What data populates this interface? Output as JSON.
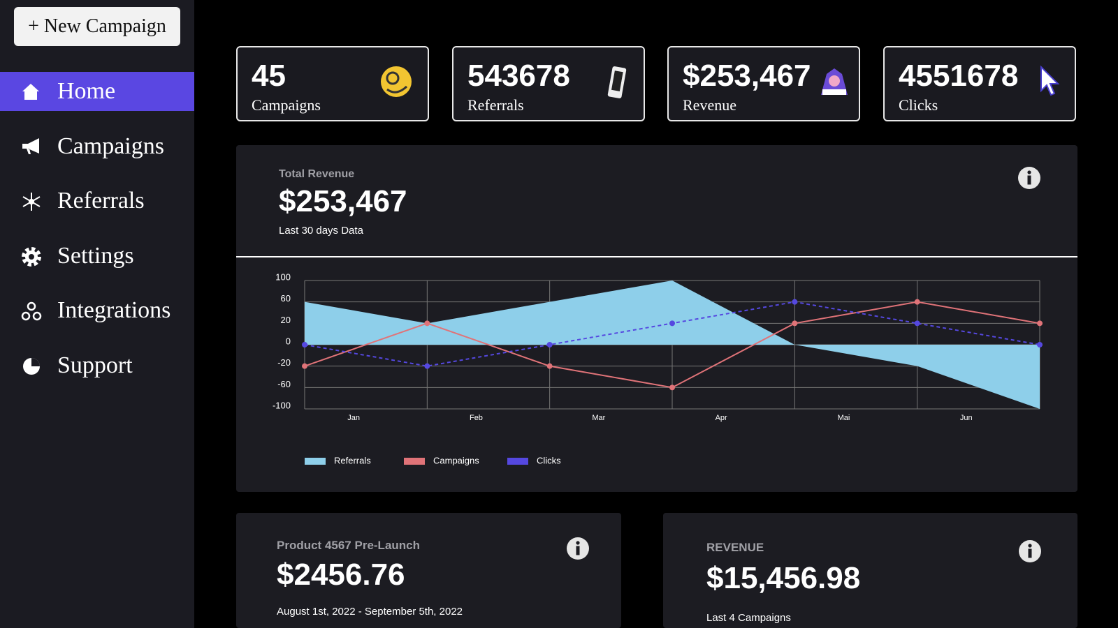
{
  "sidebar": {
    "new_button": "+ New Campaign",
    "nav": [
      "Home",
      "Campaigns",
      "Referrals",
      "Settings",
      "Integrations",
      "Support"
    ]
  },
  "stats": [
    {
      "value": "45",
      "label": "Campaigns"
    },
    {
      "value": "543678",
      "label": "Referrals"
    },
    {
      "value": "$253,467",
      "label": "Revenue"
    },
    {
      "value": "4551678",
      "label": "Clicks"
    }
  ],
  "revenue_panel": {
    "label": "Total Revenue",
    "value": "$253,467",
    "subtitle": "Last 30 days Data"
  },
  "chart_data": {
    "type": "line",
    "categories": [
      "Jan",
      "Feb",
      "Mar",
      "Apr",
      "Mai",
      "Jun",
      null
    ],
    "series": [
      {
        "name": "Referrals",
        "color": "#8ecfea",
        "style": "area",
        "values": [
          60,
          20,
          60,
          100,
          0,
          -20,
          -100
        ]
      },
      {
        "name": "Campaigns",
        "color": "#e07378",
        "style": "solid",
        "values": [
          -20,
          20,
          -20,
          -60,
          20,
          60,
          20
        ]
      },
      {
        "name": "Clicks",
        "color": "#5548e0",
        "style": "dashed",
        "values": [
          0,
          -20,
          0,
          20,
          60,
          20,
          0
        ]
      }
    ],
    "ylim": [
      -100,
      100
    ],
    "yticks": [
      100,
      60,
      20,
      0,
      -20,
      -60,
      -100
    ],
    "grid": true
  },
  "cards": [
    {
      "title": "Product 4567 Pre-Launch",
      "value": "$2456.76",
      "subtitle": "August 1st, 2022 - September 5th, 2022"
    },
    {
      "title": "REVENUE",
      "value": "$15,456.98",
      "subtitle": "Last 4 Campaigns"
    }
  ]
}
